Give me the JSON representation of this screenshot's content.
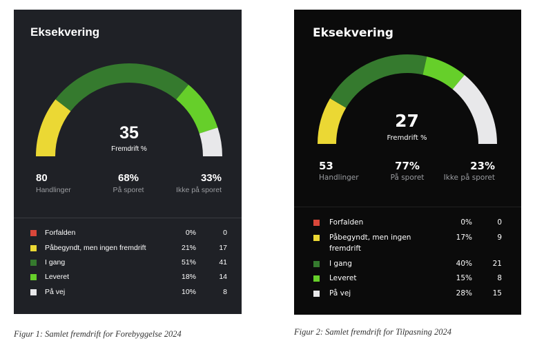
{
  "panels": [
    {
      "title": "Eksekvering",
      "progress_value": "35",
      "progress_label": "Fremdrift %",
      "stats": [
        {
          "value": "80",
          "label": "Handlinger"
        },
        {
          "value": "68%",
          "label": "På sporet"
        },
        {
          "value": "33%",
          "label": "Ikke på sporet"
        }
      ],
      "legend": [
        {
          "label": "Forfalden",
          "pct": "0%",
          "count": "0",
          "color": "#d9473a",
          "fraction": 0
        },
        {
          "label": "Påbegyndt, men ingen fremdrift",
          "pct": "21%",
          "count": "17",
          "color": "#ebd834",
          "fraction": 21
        },
        {
          "label": "I gang",
          "pct": "51%",
          "count": "41",
          "color": "#357a2e",
          "fraction": 51
        },
        {
          "label": "Leveret",
          "pct": "18%",
          "count": "14",
          "color": "#66cf2a",
          "fraction": 18
        },
        {
          "label": "På vej",
          "pct": "10%",
          "count": "8",
          "color": "#e8e8ea",
          "fraction": 10
        }
      ],
      "caption": "Figur 1: Samlet fremdrift for Forebyggelse 2024"
    },
    {
      "title": "Eksekvering",
      "progress_value": "27",
      "progress_label": "Fremdrift %",
      "stats": [
        {
          "value": "53",
          "label": "Handlinger"
        },
        {
          "value": "77%",
          "label": "På sporet"
        },
        {
          "value": "23%",
          "label": "Ikke på sporet"
        }
      ],
      "legend": [
        {
          "label": "Forfalden",
          "pct": "0%",
          "count": "0",
          "color": "#d9473a",
          "fraction": 0
        },
        {
          "label": "Påbegyndt, men ingen fremdrift",
          "pct": "17%",
          "count": "9",
          "color": "#ebd834",
          "fraction": 17
        },
        {
          "label": "I gang",
          "pct": "40%",
          "count": "21",
          "color": "#357a2e",
          "fraction": 40
        },
        {
          "label": "Leveret",
          "pct": "15%",
          "count": "8",
          "color": "#66cf2a",
          "fraction": 15
        },
        {
          "label": "På vej",
          "pct": "28%",
          "count": "15",
          "color": "#e8e8ea",
          "fraction": 28
        }
      ],
      "caption": "Figur 2: Samlet fremdrift for Tilpasning 2024"
    }
  ]
}
